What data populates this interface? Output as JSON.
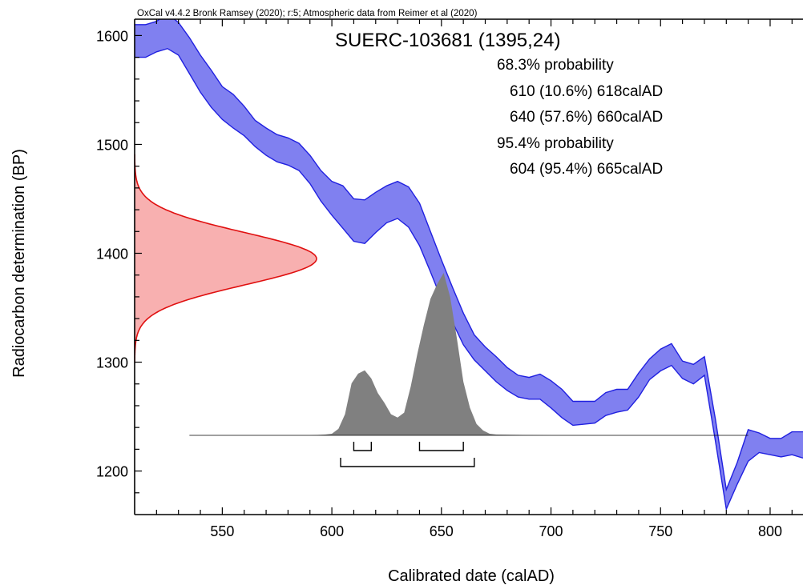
{
  "chart_data": {
    "type": "area",
    "header": "OxCal v4.4.2 Bronk Ramsey (2020); r:5; Atmospheric data from Reimer et al (2020)",
    "title": "SUERC-103681 (1395,24)",
    "xlabel": "Calibrated date (calAD)",
    "ylabel": "Radiocarbon determination (BP)",
    "xlim": [
      510,
      815
    ],
    "ylim": [
      1160,
      1615
    ],
    "xticks": [
      550,
      600,
      650,
      700,
      750,
      800
    ],
    "xtick_labels": [
      "550",
      "600",
      "650",
      "700",
      "750",
      "800"
    ],
    "yticks": [
      1200,
      1300,
      1400,
      1500,
      1600
    ],
    "ytick_labels": [
      "1200",
      "1300",
      "1400",
      "1500",
      "1600"
    ],
    "ranges_text": [
      "68.3% probability",
      "610 (10.6%) 618calAD",
      "640 (57.6%) 660calAD",
      "95.4% probability",
      "604 (95.4%) 665calAD"
    ],
    "calibration_curve": {
      "color": "#8080f0",
      "stroke": "#2020e0",
      "x": [
        510,
        515,
        520,
        525,
        530,
        535,
        540,
        545,
        550,
        555,
        560,
        565,
        570,
        575,
        580,
        585,
        590,
        595,
        600,
        605,
        610,
        615,
        620,
        625,
        630,
        635,
        640,
        645,
        650,
        655,
        660,
        665,
        670,
        675,
        680,
        685,
        690,
        695,
        700,
        705,
        710,
        715,
        720,
        725,
        730,
        735,
        740,
        745,
        750,
        755,
        760,
        765,
        770,
        775,
        780,
        785,
        790,
        795,
        800,
        805,
        810,
        815
      ],
      "upper": [
        1610,
        1610,
        1613,
        1620,
        1612,
        1598,
        1582,
        1568,
        1553,
        1546,
        1535,
        1522,
        1515,
        1509,
        1506,
        1501,
        1490,
        1476,
        1466,
        1462,
        1450,
        1449,
        1456,
        1462,
        1466,
        1461,
        1446,
        1420,
        1394,
        1369,
        1345,
        1325,
        1314,
        1305,
        1295,
        1288,
        1286,
        1289,
        1283,
        1275,
        1264,
        1264,
        1264,
        1272,
        1275,
        1275,
        1290,
        1303,
        1312,
        1317,
        1301,
        1298,
        1305,
        1248,
        1183,
        1208,
        1238,
        1235,
        1230,
        1230,
        1236,
        1236
      ],
      "lower": [
        1580,
        1580,
        1585,
        1588,
        1582,
        1565,
        1548,
        1534,
        1523,
        1515,
        1508,
        1498,
        1490,
        1484,
        1481,
        1476,
        1464,
        1448,
        1435,
        1423,
        1411,
        1409,
        1419,
        1428,
        1432,
        1424,
        1407,
        1383,
        1358,
        1337,
        1316,
        1302,
        1292,
        1282,
        1274,
        1268,
        1266,
        1266,
        1258,
        1249,
        1242,
        1243,
        1244,
        1251,
        1254,
        1256,
        1268,
        1284,
        1292,
        1297,
        1285,
        1280,
        1288,
        1228,
        1165,
        1188,
        1209,
        1217,
        1215,
        1213,
        1215,
        1212
      ]
    },
    "measurement_distribution": {
      "color": "#f8b0b0",
      "stroke": "#e01010",
      "mean": 1395,
      "sigma": 24,
      "peak_x": 593
    },
    "posterior_distribution": {
      "color": "#808080",
      "x": [
        535,
        590,
        597,
        600,
        603,
        606,
        609,
        612,
        615,
        618,
        621,
        624,
        627,
        630,
        633,
        636,
        639,
        642,
        645,
        648,
        651,
        654,
        657,
        660,
        663,
        666,
        669,
        672,
        675,
        700,
        790
      ],
      "density": [
        0,
        0,
        0.005,
        0.01,
        0.04,
        0.13,
        0.32,
        0.38,
        0.4,
        0.35,
        0.26,
        0.2,
        0.13,
        0.11,
        0.14,
        0.3,
        0.5,
        0.68,
        0.84,
        0.93,
        1.0,
        0.85,
        0.6,
        0.33,
        0.17,
        0.07,
        0.03,
        0.01,
        0.005,
        0,
        0
      ]
    },
    "range_bars": {
      "sigma1": [
        [
          610,
          618
        ],
        [
          640,
          660
        ]
      ],
      "sigma2": [
        [
          604,
          665
        ]
      ]
    }
  }
}
